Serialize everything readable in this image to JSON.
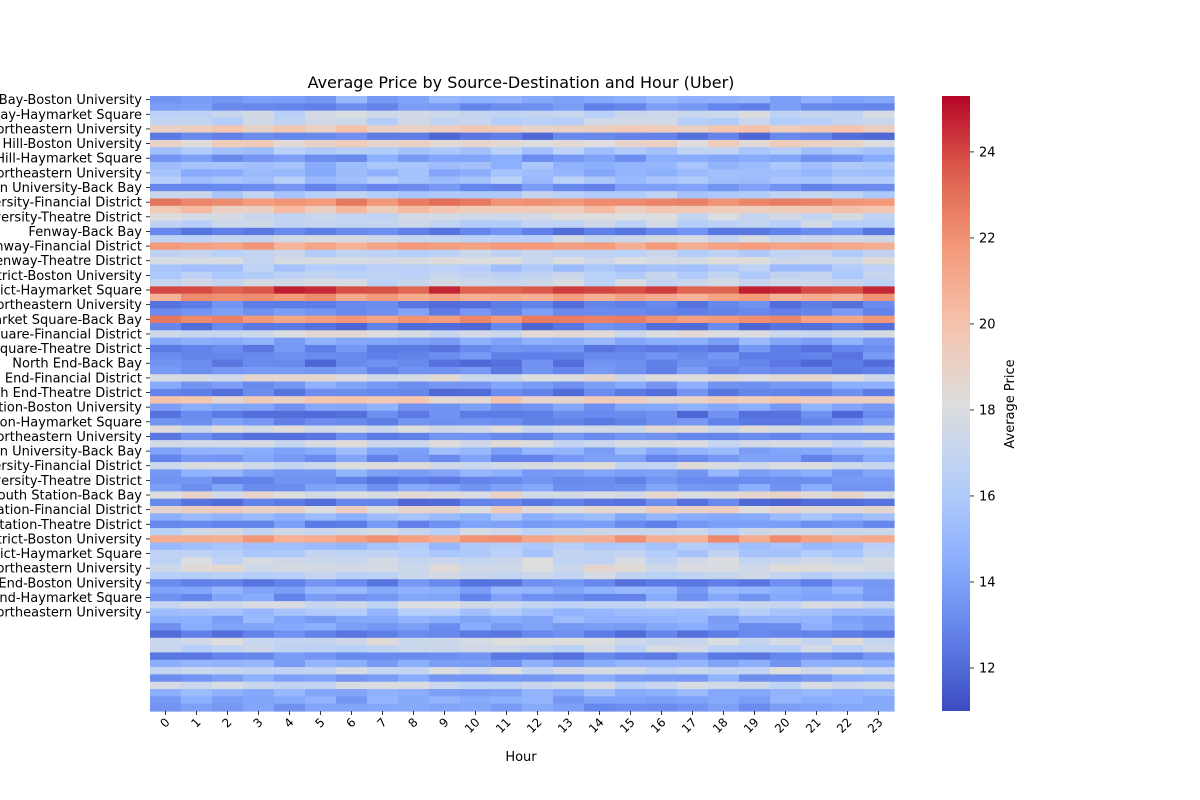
{
  "chart_data": {
    "type": "heatmap",
    "title": "Average Price by Source-Destination and Hour (Uber)",
    "xlabel": "Hour",
    "ylabel": "",
    "colorbar_label": "Average Price",
    "colormap": "coolwarm",
    "vmin": 11.0,
    "vmax": 25.3,
    "colorbar_ticks": [
      12,
      14,
      16,
      18,
      20,
      22,
      24
    ],
    "x": [
      "0",
      "1",
      "2",
      "3",
      "4",
      "5",
      "6",
      "7",
      "8",
      "9",
      "10",
      "11",
      "12",
      "13",
      "14",
      "15",
      "16",
      "17",
      "18",
      "19",
      "20",
      "21",
      "22",
      "23"
    ],
    "y_tick_labels": [
      "Back Bay-Boston University",
      "Back Bay-Haymarket Square",
      "Back Bay-Northeastern University",
      "Beacon Hill-Boston University",
      "Beacon Hill-Haymarket Square",
      "Beacon Hill-Northeastern University",
      "Boston University-Back Bay",
      "Boston University-Financial District",
      "Boston University-Theatre District",
      "Fenway-Back Bay",
      "Fenway-Financial District",
      "Fenway-Theatre District",
      "Financial District-Boston University",
      "Financial District-Haymarket Square",
      "Financial District-Northeastern University",
      "Haymarket Square-Back Bay",
      "Haymarket Square-Financial District",
      "Haymarket Square-Theatre District",
      "North End-Back Bay",
      "North End-Financial District",
      "North End-Theatre District",
      "North Station-Boston University",
      "North Station-Haymarket Square",
      "North Station-Northeastern University",
      "Northeastern University-Back Bay",
      "Northeastern University-Financial District",
      "Northeastern University-Theatre District",
      "South Station-Back Bay",
      "South Station-Financial District",
      "South Station-Theatre District",
      "Theatre District-Boston University",
      "Theatre District-Haymarket Square",
      "Theatre District-Northeastern University",
      "West End-Boston University",
      "West End-Haymarket Square",
      "West End-Northeastern University"
    ],
    "rows": [
      {
        "base": 14.3
      },
      {
        "base": 13.2
      },
      {
        "base": 17.2
      },
      {
        "base": 16.8
      },
      {
        "base": 19.3
      },
      {
        "base": 12.6
      },
      {
        "base": 18.8
      },
      {
        "base": 16.0
      },
      {
        "base": 13.8
      },
      {
        "base": 15.2
      },
      {
        "base": 14.9
      },
      {
        "base": 15.8
      },
      {
        "base": 13.5
      },
      {
        "base": 16.4
      },
      {
        "base": 22.4
      },
      {
        "base": 19.7
      },
      {
        "base": 17.5
      },
      {
        "base": 16.9
      },
      {
        "base": 12.8
      },
      {
        "base": 17.0
      },
      {
        "base": 21.3
      },
      {
        "base": 16.6
      },
      {
        "base": 17.6
      },
      {
        "base": 15.9
      },
      {
        "base": 16.5
      },
      {
        "base": 17.3
      },
      {
        "base": 24.0
      },
      {
        "base": 21.4
      },
      {
        "base": 12.8
      },
      {
        "base": 13.3
      },
      {
        "base": 22.0
      },
      {
        "base": 12.6
      },
      {
        "base": 17.8
      },
      {
        "base": 14.4
      },
      {
        "base": 13.0
      },
      {
        "base": 13.0
      },
      {
        "base": 12.7
      },
      {
        "base": 13.1
      },
      {
        "base": 17.9
      },
      {
        "base": 13.9
      },
      {
        "base": 12.7
      },
      {
        "base": 19.3
      },
      {
        "base": 14.0
      },
      {
        "base": 12.7
      },
      {
        "base": 13.2
      },
      {
        "base": 17.8
      },
      {
        "base": 12.8
      },
      {
        "base": 17.6
      },
      {
        "base": 14.6
      },
      {
        "base": 13.5
      },
      {
        "base": 17.6
      },
      {
        "base": 14.2
      },
      {
        "base": 13.0
      },
      {
        "base": 13.8
      },
      {
        "base": 18.3
      },
      {
        "base": 12.5
      },
      {
        "base": 18.8
      },
      {
        "base": 15.0
      },
      {
        "base": 13.3
      },
      {
        "base": 17.0
      },
      {
        "base": 21.5
      },
      {
        "base": 15.7
      },
      {
        "base": 16.2
      },
      {
        "base": 17.4
      },
      {
        "base": 18.0
      },
      {
        "base": 17.0
      },
      {
        "base": 13.0
      },
      {
        "base": 14.4
      },
      {
        "base": 13.6
      },
      {
        "base": 17.3
      },
      {
        "base": 15.5
      },
      {
        "base": 14.5
      },
      {
        "base": 13.9
      },
      {
        "base": 12.8
      },
      {
        "base": 17.6
      },
      {
        "base": 17.1
      },
      {
        "base": 13.0
      },
      {
        "base": 14.2
      },
      {
        "base": 17.4
      },
      {
        "base": 14.0
      },
      {
        "base": 17.4
      },
      {
        "base": 14.6
      },
      {
        "base": 14.3
      },
      {
        "base": 13.8
      }
    ]
  }
}
